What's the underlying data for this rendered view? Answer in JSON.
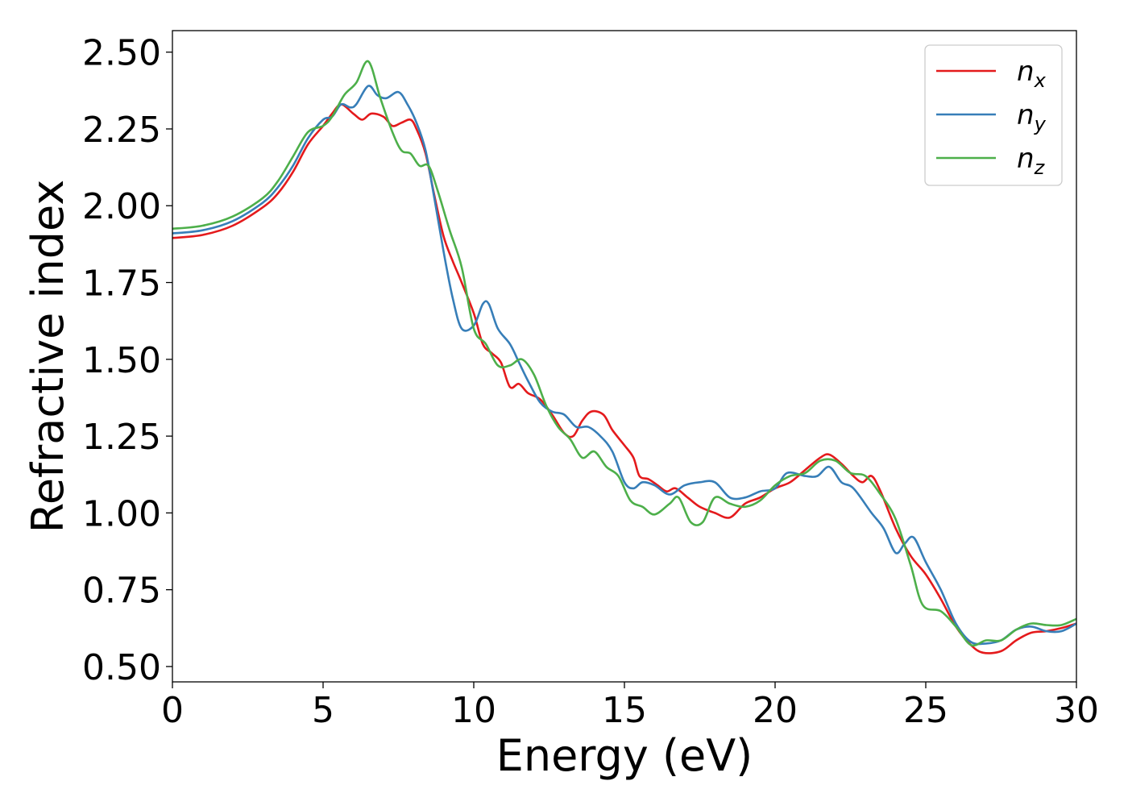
{
  "chart_data": {
    "type": "line",
    "title": "",
    "xlabel": "Energy (eV)",
    "ylabel": "Refractive index",
    "xlim": [
      0,
      30
    ],
    "ylim": [
      0.45,
      2.57
    ],
    "xticks": [
      0,
      5,
      10,
      15,
      20,
      25,
      30
    ],
    "xtick_labels": [
      "0",
      "5",
      "10",
      "15",
      "20",
      "25",
      "30"
    ],
    "yticks": [
      0.5,
      0.75,
      1.0,
      1.25,
      1.5,
      1.75,
      2.0,
      2.25,
      2.5
    ],
    "ytick_labels": [
      "0.50",
      "0.75",
      "1.00",
      "1.25",
      "1.50",
      "1.75",
      "2.00",
      "2.25",
      "2.50"
    ],
    "grid": false,
    "legend_position": "top-right",
    "series": [
      {
        "name": "n",
        "subscript": "x",
        "color": "#e41a1c",
        "points": [
          [
            0,
            1.895
          ],
          [
            1,
            1.905
          ],
          [
            2,
            1.935
          ],
          [
            3,
            1.995
          ],
          [
            3.5,
            2.04
          ],
          [
            4,
            2.11
          ],
          [
            4.5,
            2.2
          ],
          [
            5,
            2.26
          ],
          [
            5.3,
            2.3
          ],
          [
            5.6,
            2.33
          ],
          [
            6,
            2.3
          ],
          [
            6.3,
            2.28
          ],
          [
            6.6,
            2.3
          ],
          [
            7,
            2.29
          ],
          [
            7.3,
            2.26
          ],
          [
            7.6,
            2.27
          ],
          [
            7.9,
            2.28
          ],
          [
            8.1,
            2.25
          ],
          [
            8.4,
            2.17
          ],
          [
            8.7,
            2.03
          ],
          [
            9,
            1.9
          ],
          [
            9.3,
            1.82
          ],
          [
            9.6,
            1.75
          ],
          [
            10,
            1.65
          ],
          [
            10.3,
            1.55
          ],
          [
            10.6,
            1.52
          ],
          [
            10.9,
            1.49
          ],
          [
            11.2,
            1.41
          ],
          [
            11.5,
            1.42
          ],
          [
            11.8,
            1.39
          ],
          [
            12.2,
            1.37
          ],
          [
            12.6,
            1.32
          ],
          [
            13,
            1.26
          ],
          [
            13.3,
            1.25
          ],
          [
            13.6,
            1.3
          ],
          [
            13.9,
            1.33
          ],
          [
            14.3,
            1.32
          ],
          [
            14.6,
            1.27
          ],
          [
            15,
            1.22
          ],
          [
            15.3,
            1.18
          ],
          [
            15.5,
            1.12
          ],
          [
            15.8,
            1.11
          ],
          [
            16.1,
            1.09
          ],
          [
            16.4,
            1.07
          ],
          [
            16.7,
            1.08
          ],
          [
            17.1,
            1.05
          ],
          [
            17.5,
            1.02
          ],
          [
            18,
            1.0
          ],
          [
            18.5,
            0.985
          ],
          [
            19,
            1.03
          ],
          [
            19.5,
            1.05
          ],
          [
            20,
            1.08
          ],
          [
            20.5,
            1.1
          ],
          [
            21,
            1.14
          ],
          [
            21.5,
            1.18
          ],
          [
            21.8,
            1.19
          ],
          [
            22.2,
            1.16
          ],
          [
            22.6,
            1.12
          ],
          [
            22.9,
            1.1
          ],
          [
            23.2,
            1.12
          ],
          [
            23.5,
            1.07
          ],
          [
            24,
            0.95
          ],
          [
            24.5,
            0.86
          ],
          [
            25,
            0.8
          ],
          [
            25.5,
            0.72
          ],
          [
            26,
            0.63
          ],
          [
            26.5,
            0.57
          ],
          [
            26.9,
            0.545
          ],
          [
            27.5,
            0.55
          ],
          [
            28,
            0.585
          ],
          [
            28.5,
            0.61
          ],
          [
            29,
            0.615
          ],
          [
            29.5,
            0.625
          ],
          [
            30,
            0.64
          ]
        ]
      },
      {
        "name": "n",
        "subscript": "y",
        "color": "#377eb8",
        "points": [
          [
            0,
            1.91
          ],
          [
            1,
            1.92
          ],
          [
            2,
            1.95
          ],
          [
            3,
            2.01
          ],
          [
            3.5,
            2.06
          ],
          [
            4,
            2.13
          ],
          [
            4.5,
            2.22
          ],
          [
            5,
            2.28
          ],
          [
            5.3,
            2.29
          ],
          [
            5.6,
            2.33
          ],
          [
            5.9,
            2.32
          ],
          [
            6.1,
            2.33
          ],
          [
            6.5,
            2.39
          ],
          [
            6.8,
            2.36
          ],
          [
            7.1,
            2.35
          ],
          [
            7.5,
            2.37
          ],
          [
            7.8,
            2.33
          ],
          [
            8.1,
            2.27
          ],
          [
            8.4,
            2.18
          ],
          [
            8.7,
            2.02
          ],
          [
            9,
            1.85
          ],
          [
            9.3,
            1.7
          ],
          [
            9.6,
            1.6
          ],
          [
            10,
            1.61
          ],
          [
            10.3,
            1.68
          ],
          [
            10.5,
            1.68
          ],
          [
            10.8,
            1.6
          ],
          [
            11.2,
            1.55
          ],
          [
            11.5,
            1.49
          ],
          [
            11.8,
            1.43
          ],
          [
            12.2,
            1.36
          ],
          [
            12.6,
            1.33
          ],
          [
            13,
            1.32
          ],
          [
            13.4,
            1.28
          ],
          [
            13.8,
            1.28
          ],
          [
            14.2,
            1.25
          ],
          [
            14.6,
            1.2
          ],
          [
            15,
            1.1
          ],
          [
            15.3,
            1.08
          ],
          [
            15.6,
            1.1
          ],
          [
            16,
            1.09
          ],
          [
            16.5,
            1.06
          ],
          [
            17,
            1.09
          ],
          [
            17.5,
            1.1
          ],
          [
            18,
            1.1
          ],
          [
            18.5,
            1.05
          ],
          [
            19,
            1.05
          ],
          [
            19.5,
            1.07
          ],
          [
            20,
            1.08
          ],
          [
            20.4,
            1.13
          ],
          [
            21,
            1.12
          ],
          [
            21.4,
            1.12
          ],
          [
            21.8,
            1.15
          ],
          [
            22.2,
            1.1
          ],
          [
            22.6,
            1.08
          ],
          [
            23.2,
            1.0
          ],
          [
            23.6,
            0.95
          ],
          [
            24,
            0.87
          ],
          [
            24.3,
            0.9
          ],
          [
            24.6,
            0.92
          ],
          [
            25,
            0.84
          ],
          [
            25.5,
            0.75
          ],
          [
            26,
            0.64
          ],
          [
            26.5,
            0.58
          ],
          [
            27,
            0.575
          ],
          [
            27.5,
            0.585
          ],
          [
            28,
            0.62
          ],
          [
            28.5,
            0.63
          ],
          [
            29,
            0.615
          ],
          [
            29.5,
            0.615
          ],
          [
            30,
            0.64
          ]
        ]
      },
      {
        "name": "n",
        "subscript": "z",
        "color": "#4daf4a",
        "points": [
          [
            0,
            1.925
          ],
          [
            1,
            1.935
          ],
          [
            2,
            1.965
          ],
          [
            3,
            2.025
          ],
          [
            3.5,
            2.08
          ],
          [
            4,
            2.16
          ],
          [
            4.5,
            2.24
          ],
          [
            5,
            2.26
          ],
          [
            5.3,
            2.29
          ],
          [
            5.7,
            2.36
          ],
          [
            6.1,
            2.4
          ],
          [
            6.5,
            2.47
          ],
          [
            6.9,
            2.35
          ],
          [
            7.3,
            2.24
          ],
          [
            7.6,
            2.18
          ],
          [
            7.9,
            2.17
          ],
          [
            8.2,
            2.13
          ],
          [
            8.5,
            2.13
          ],
          [
            8.8,
            2.05
          ],
          [
            9.2,
            1.92
          ],
          [
            9.6,
            1.8
          ],
          [
            10,
            1.6
          ],
          [
            10.4,
            1.55
          ],
          [
            10.8,
            1.48
          ],
          [
            11.2,
            1.48
          ],
          [
            11.6,
            1.5
          ],
          [
            12,
            1.45
          ],
          [
            12.4,
            1.35
          ],
          [
            12.8,
            1.28
          ],
          [
            13.2,
            1.24
          ],
          [
            13.6,
            1.18
          ],
          [
            14,
            1.2
          ],
          [
            14.4,
            1.15
          ],
          [
            14.8,
            1.12
          ],
          [
            15.2,
            1.04
          ],
          [
            15.6,
            1.02
          ],
          [
            16,
            0.995
          ],
          [
            16.5,
            1.03
          ],
          [
            16.8,
            1.05
          ],
          [
            17.2,
            0.97
          ],
          [
            17.6,
            0.97
          ],
          [
            18,
            1.05
          ],
          [
            18.5,
            1.03
          ],
          [
            19,
            1.02
          ],
          [
            19.5,
            1.04
          ],
          [
            20,
            1.09
          ],
          [
            20.5,
            1.12
          ],
          [
            21,
            1.13
          ],
          [
            21.5,
            1.17
          ],
          [
            22,
            1.17
          ],
          [
            22.5,
            1.13
          ],
          [
            23,
            1.12
          ],
          [
            23.5,
            1.06
          ],
          [
            24,
            0.98
          ],
          [
            24.5,
            0.83
          ],
          [
            24.9,
            0.7
          ],
          [
            25.5,
            0.68
          ],
          [
            26,
            0.63
          ],
          [
            26.5,
            0.57
          ],
          [
            27,
            0.585
          ],
          [
            27.5,
            0.585
          ],
          [
            28,
            0.62
          ],
          [
            28.5,
            0.64
          ],
          [
            29,
            0.635
          ],
          [
            29.5,
            0.635
          ],
          [
            30,
            0.655
          ]
        ]
      }
    ]
  }
}
